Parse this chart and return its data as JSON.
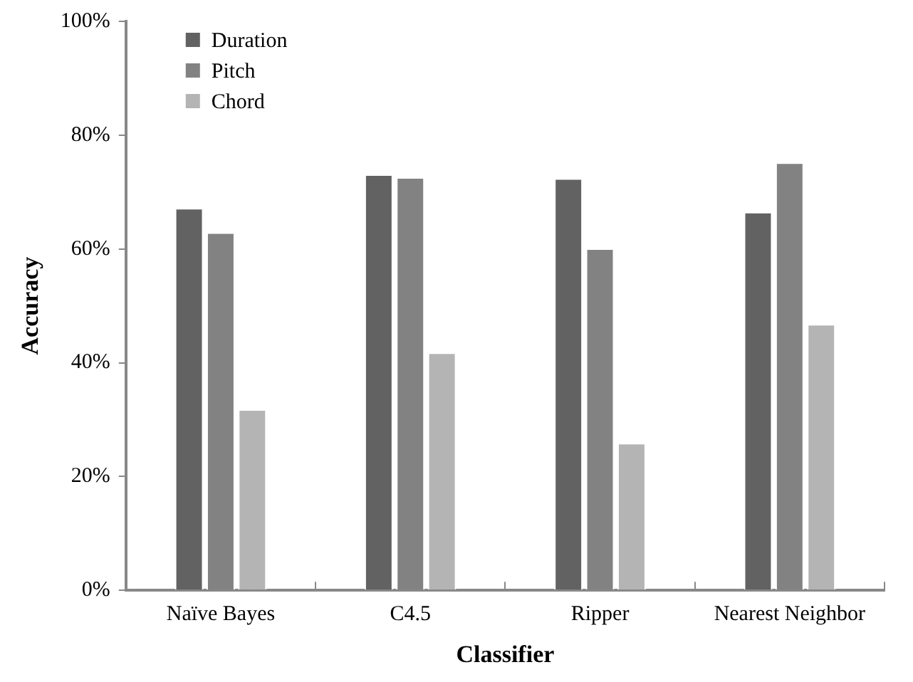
{
  "chart_data": {
    "type": "bar",
    "xlabel": "Classifier",
    "ylabel": "Accuracy",
    "categories": [
      "Naïve Bayes",
      "C4.5",
      "Ripper",
      "Nearest Neighbor"
    ],
    "series": [
      {
        "name": "Duration",
        "color": "#626262",
        "values": [
          67.2,
          73.1,
          72.4,
          66.5
        ]
      },
      {
        "name": "Pitch",
        "color": "#828282",
        "values": [
          62.9,
          72.6,
          60.1,
          75.2
        ]
      },
      {
        "name": "Chord",
        "color": "#b4b4b4",
        "values": [
          31.8,
          41.8,
          25.9,
          46.8
        ]
      }
    ],
    "ylim": [
      0,
      100
    ],
    "yticks": [
      {
        "value": 0,
        "label": "0%"
      },
      {
        "value": 20,
        "label": "20%"
      },
      {
        "value": 40,
        "label": "40%"
      },
      {
        "value": 60,
        "label": "60%"
      },
      {
        "value": 80,
        "label": "80%"
      },
      {
        "value": 100,
        "label": "100%"
      }
    ],
    "grid": false,
    "legend": "top left"
  }
}
